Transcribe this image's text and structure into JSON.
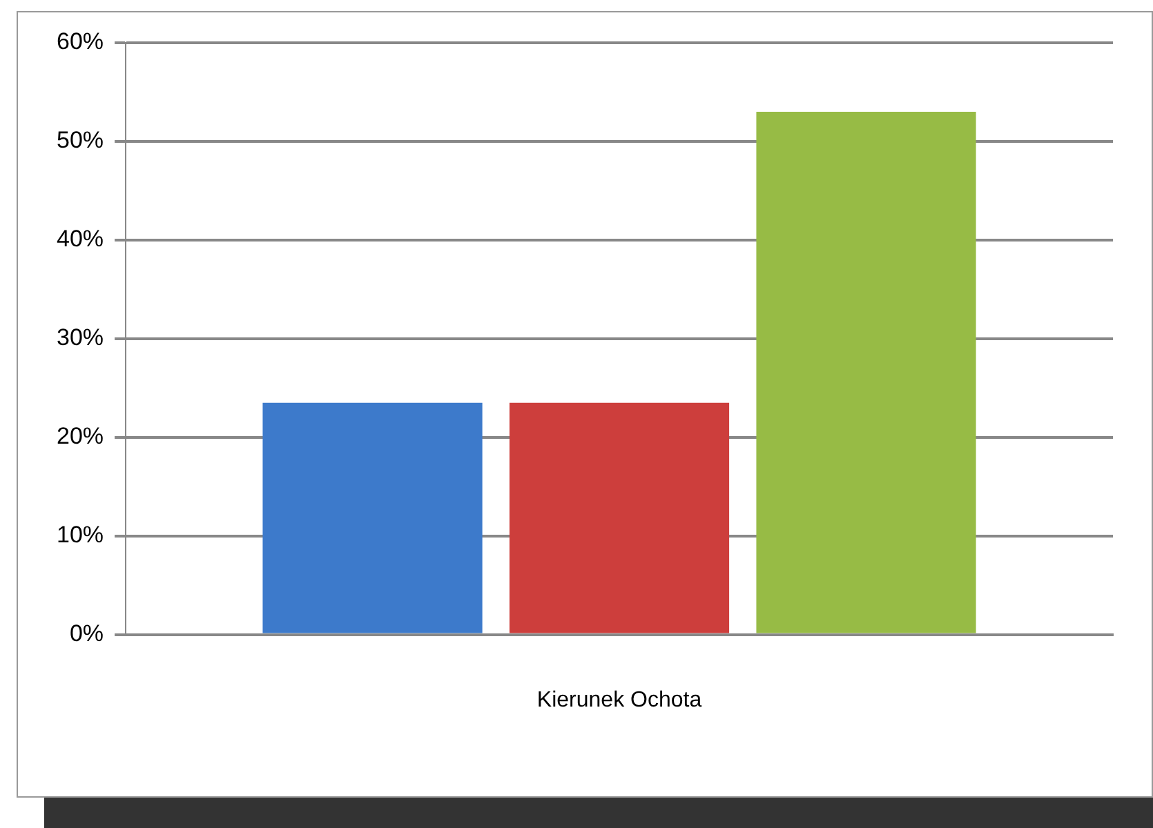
{
  "chart_data": {
    "type": "bar",
    "categories": [
      "Kierunek Ochota"
    ],
    "series": [
      {
        "color": "#3d7acb",
        "values": [
          23.5
        ]
      },
      {
        "color": "#cd3e3c",
        "values": [
          23.5
        ]
      },
      {
        "color": "#97bb45",
        "values": [
          53
        ]
      }
    ],
    "ylim": [
      0,
      60
    ],
    "yticks": [
      {
        "value": 0,
        "label": "0%"
      },
      {
        "value": 10,
        "label": "10%"
      },
      {
        "value": 20,
        "label": "20%"
      },
      {
        "value": 30,
        "label": "30%"
      },
      {
        "value": 40,
        "label": "40%"
      },
      {
        "value": 50,
        "label": "50%"
      },
      {
        "value": 60,
        "label": "60%"
      }
    ],
    "grid": "y",
    "legend": false
  }
}
